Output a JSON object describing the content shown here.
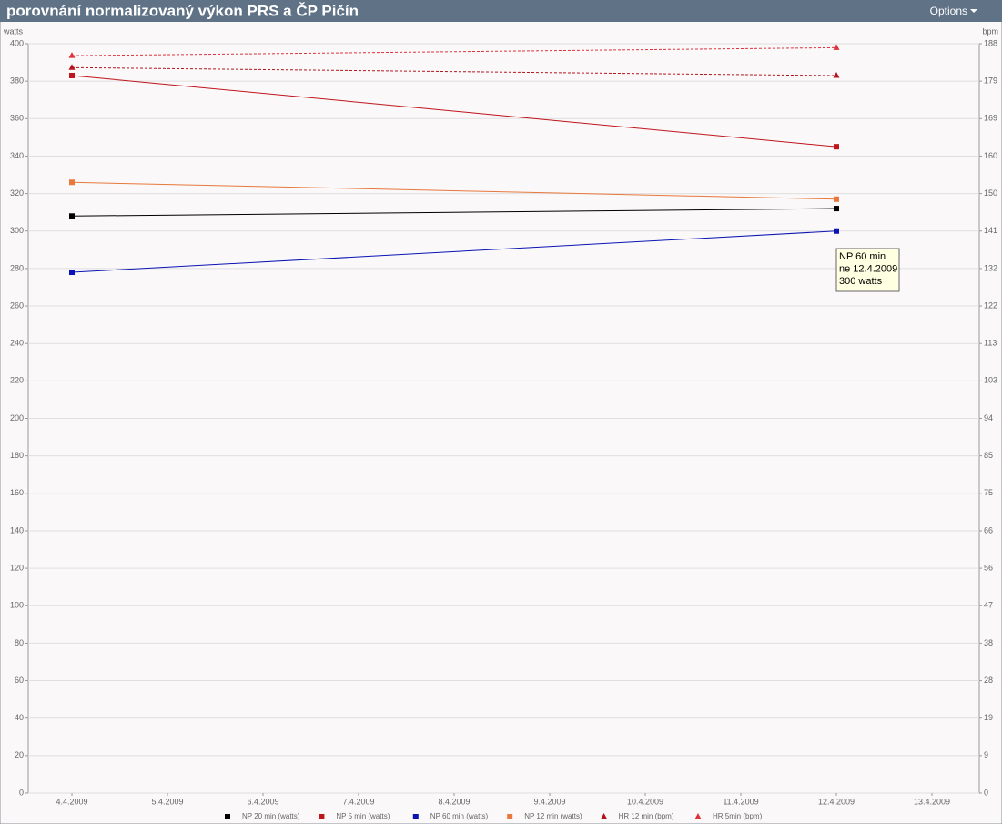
{
  "window": {
    "title": "porovnání normalizovaný výkon PRS a ČP Pičín",
    "options": "Options"
  },
  "chart_data": {
    "type": "line",
    "y_label": "watts",
    "y2_label": "bpm",
    "categories": [
      "4.4.2009",
      "5.4.2009",
      "6.4.2009",
      "7.4.2009",
      "8.4.2009",
      "9.4.2009",
      "10.4.2009",
      "11.4.2009",
      "12.4.2009",
      "13.4.2009"
    ],
    "ylim": [
      0,
      400
    ],
    "yticks": [
      0,
      20,
      40,
      60,
      80,
      100,
      120,
      140,
      160,
      180,
      200,
      220,
      240,
      260,
      280,
      300,
      320,
      340,
      360,
      380,
      400
    ],
    "y2lim": [
      0,
      188
    ],
    "y2ticks": [
      0,
      {
        "value": 9.4,
        "label": "9"
      },
      {
        "value": 18.8,
        "label": "19"
      },
      {
        "value": 28.2,
        "label": "28"
      },
      {
        "value": 37.6,
        "label": "38"
      },
      47,
      {
        "value": 56.4,
        "label": "56"
      },
      {
        "value": 65.8,
        "label": "66"
      },
      {
        "value": 75.2,
        "label": "75"
      },
      {
        "value": 84.6,
        "label": "85"
      },
      94,
      {
        "value": 103.4,
        "label": "103"
      },
      {
        "value": 112.8,
        "label": "113"
      },
      {
        "value": 122.2,
        "label": "122"
      },
      {
        "value": 131.6,
        "label": "132"
      },
      141,
      {
        "value": 150.4,
        "label": "150"
      },
      {
        "value": 159.8,
        "label": "160"
      },
      {
        "value": 169.2,
        "label": "169"
      },
      {
        "value": 178.6,
        "label": "179"
      },
      188
    ],
    "grid": true,
    "series": [
      {
        "name": "NP 20 min (watts)",
        "color": "#000000",
        "marker": "square",
        "dashed": false,
        "x": [
          "4.4.2009",
          "12.4.2009"
        ],
        "values": [
          308,
          312
        ]
      },
      {
        "name": "NP 5 min (watts)",
        "color": "#c0141c",
        "marker": "square",
        "dashed": false,
        "x": [
          "4.4.2009",
          "12.4.2009"
        ],
        "values": [
          383,
          345
        ]
      },
      {
        "name": "NP 60 min (watts)",
        "color": "#0a14b4",
        "marker": "square",
        "dashed": false,
        "x": [
          "4.4.2009",
          "12.4.2009"
        ],
        "values": [
          278,
          300
        ]
      },
      {
        "name": "NP 12 min (watts)",
        "color": "#e8783c",
        "marker": "square",
        "dashed": false,
        "x": [
          "4.4.2009",
          "12.4.2009"
        ],
        "values": [
          326,
          317
        ]
      },
      {
        "name": "HR 12 min (bpm)",
        "color": "#b4141e",
        "marker": "triangle",
        "dashed": true,
        "axis": "y2",
        "x": [
          "4.4.2009",
          "12.4.2009"
        ],
        "values": [
          182,
          180
        ]
      },
      {
        "name": "HR 5min (bpm)",
        "color": "#dc323c",
        "marker": "triangle",
        "dashed": true,
        "axis": "y2",
        "x": [
          "4.4.2009",
          "12.4.2009"
        ],
        "values": [
          185,
          187
        ]
      }
    ],
    "tooltip": [
      "NP 60 min",
      "ne 12.4.2009",
      "300 watts"
    ]
  }
}
